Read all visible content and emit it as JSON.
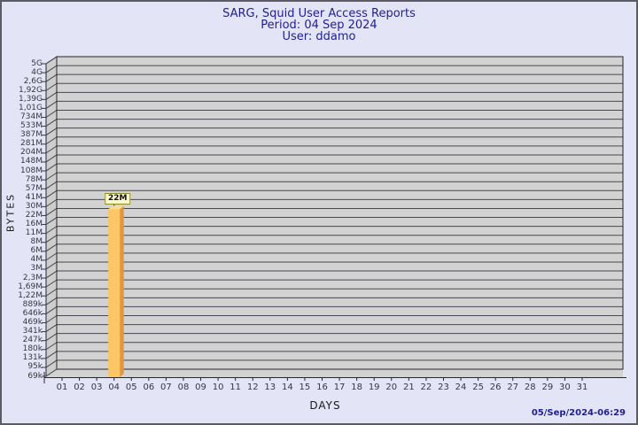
{
  "header": {
    "title": "SARG, Squid User Access Reports",
    "period": "Period: 04 Sep 2024",
    "user": "User: ddamo"
  },
  "footer": {
    "timestamp": "05/Sep/2024-06:29"
  },
  "chart_data": {
    "type": "bar",
    "title": "SARG, Squid User Access Reports",
    "subtitle": "Period: 04 Sep 2024 — User: ddamo",
    "xlabel": "DAYS",
    "ylabel": "BYTES",
    "x_ticks": [
      "01",
      "02",
      "03",
      "04",
      "05",
      "06",
      "07",
      "08",
      "09",
      "10",
      "11",
      "12",
      "13",
      "14",
      "15",
      "16",
      "17",
      "18",
      "19",
      "20",
      "21",
      "22",
      "23",
      "24",
      "25",
      "26",
      "27",
      "28",
      "29",
      "30",
      "31"
    ],
    "y_ticks": [
      "5G",
      "4G",
      "2,6G",
      "1,92G",
      "1,39G",
      "1,01G",
      "734M",
      "533M",
      "387M",
      "281M",
      "204M",
      "148M",
      "108M",
      "78M",
      "57M",
      "41M",
      "30M",
      "22M",
      "16M",
      "11M",
      "8M",
      "6M",
      "4M",
      "3M",
      "2,3M",
      "1,69M",
      "1,22M",
      "889k",
      "646k",
      "469k",
      "341k",
      "247k",
      "180k",
      "131k",
      "95k",
      "69k"
    ],
    "y_scale": "log",
    "grid": true,
    "bars": [
      {
        "day": "04",
        "label": "22M",
        "value": "22M"
      }
    ],
    "colors": {
      "page_bg": "#e4e4f7",
      "page_border": "#5c5c66",
      "plot_bg": "#d2d2d2",
      "wall_bg": "#cdcdcd",
      "grid_line": "#47474f",
      "axis_line": "#26262c",
      "tick_text": "#37373f",
      "header_text": "#1f1f8f",
      "bar_front": "#fdc665",
      "bar_side": "#e3963e",
      "bar_top": "#fed98a",
      "value_box_bg": "#fcf8d0",
      "value_box_border": "#8f8f2a"
    }
  }
}
